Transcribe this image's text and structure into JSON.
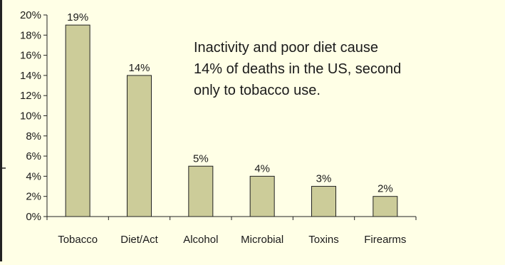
{
  "colors": {
    "background": "#ffffe6",
    "bar_fill": "#cccc99",
    "bar_stroke": "#222222",
    "axis": "#222222",
    "left_edge_accent": "#222222"
  },
  "chart_data": {
    "type": "bar",
    "categories": [
      "Tobacco",
      "Diet/Act",
      "Alcohol",
      "Microbial",
      "Toxins",
      "Firearms"
    ],
    "values": [
      19,
      14,
      5,
      4,
      3,
      2
    ],
    "data_labels": [
      "19%",
      "14%",
      "5%",
      "4%",
      "3%",
      "2%"
    ],
    "ylim": [
      0,
      20
    ],
    "yticks": [
      0,
      2,
      4,
      6,
      8,
      10,
      12,
      14,
      16,
      18,
      20
    ],
    "ytick_labels": [
      "0%",
      "2%",
      "4%",
      "6%",
      "8%",
      "10%",
      "12%",
      "14%",
      "16%",
      "18%",
      "20%"
    ],
    "grid": false,
    "legend": "none",
    "annotation": {
      "lines": [
        "Inactivity and poor diet cause",
        "14% of deaths in the US, second",
        "only to tobacco use."
      ]
    }
  }
}
